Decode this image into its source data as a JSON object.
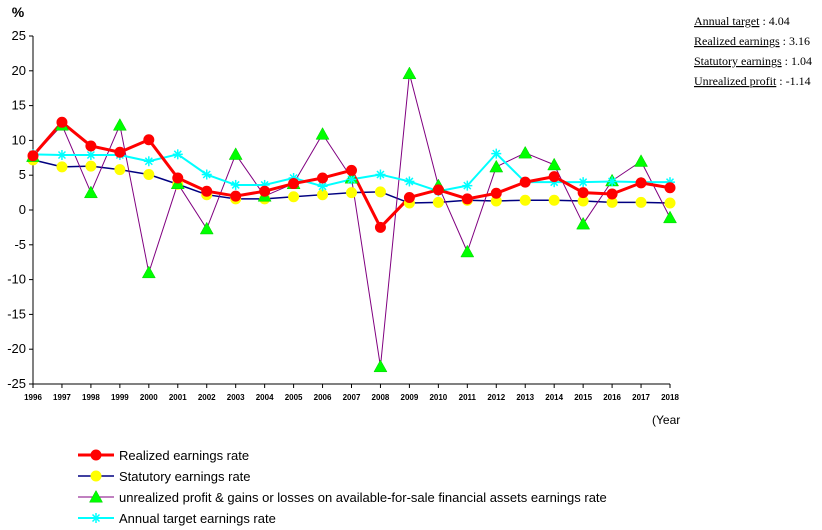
{
  "chart_data": {
    "type": "line",
    "ylabel": "%",
    "xlabel": "(Year",
    "ylim": [
      -25,
      25
    ],
    "yticks": [
      25,
      20,
      15,
      10,
      5,
      0,
      -5,
      -10,
      -15,
      -20,
      -25
    ],
    "x": [
      "1996",
      "1997",
      "1998",
      "1999",
      "2000",
      "2001",
      "2002",
      "2003",
      "2004",
      "2005",
      "2006",
      "2007",
      "2008",
      "2009",
      "2010",
      "2011",
      "2012",
      "2013",
      "2014",
      "2015",
      "2016",
      "2017",
      "2018"
    ],
    "grid": false,
    "legend_position": "bottom",
    "series": [
      {
        "name": "Realized earnings rate",
        "color": "#ff0000",
        "marker": "circle",
        "values": [
          7.8,
          12.6,
          9.2,
          8.3,
          10.1,
          4.6,
          2.7,
          2.0,
          2.7,
          3.8,
          4.6,
          5.7,
          -2.5,
          1.8,
          2.9,
          1.6,
          2.4,
          4.0,
          4.8,
          2.5,
          2.3,
          3.9,
          3.2
        ]
      },
      {
        "name": "Statutory earnings rate",
        "color": "#ffff00",
        "marker": "diamond",
        "values": [
          7.2,
          6.2,
          6.3,
          5.8,
          5.1,
          3.7,
          2.2,
          1.6,
          1.6,
          1.9,
          2.2,
          2.5,
          2.6,
          1.0,
          1.1,
          1.4,
          1.3,
          1.4,
          1.4,
          1.3,
          1.1,
          1.1,
          1.0
        ]
      },
      {
        "name": "unrealized profit & gains or losses on available-for-sale financial assets earnings rate",
        "color": "#800080",
        "marker": "triangle",
        "values": [
          7.7,
          12.2,
          2.5,
          12.2,
          -9.0,
          3.8,
          -2.7,
          8.0,
          2.0,
          3.8,
          10.9,
          4.6,
          -22.5,
          19.6,
          3.5,
          -6.0,
          6.2,
          8.2,
          6.5,
          -2.0,
          4.2,
          7.0,
          -1.1
        ]
      },
      {
        "name": "Annual target earnings rate",
        "color": "#00ffff",
        "marker": "star",
        "values": [
          8.0,
          7.9,
          7.9,
          7.9,
          7.0,
          8.0,
          5.1,
          3.6,
          3.6,
          4.6,
          3.4,
          4.4,
          5.1,
          4.1,
          2.7,
          3.5,
          8.1,
          4.0,
          4.0,
          4.0,
          4.1,
          4.0,
          4.0
        ]
      }
    ]
  },
  "notes": [
    {
      "label": "Annual target",
      "value": "4.04"
    },
    {
      "label": "Realized earnings",
      "value": "3.16"
    },
    {
      "label": "Statutory earnings",
      "value": "1.04"
    },
    {
      "label": "Unrealized profit",
      "value": "-1.14"
    }
  ]
}
